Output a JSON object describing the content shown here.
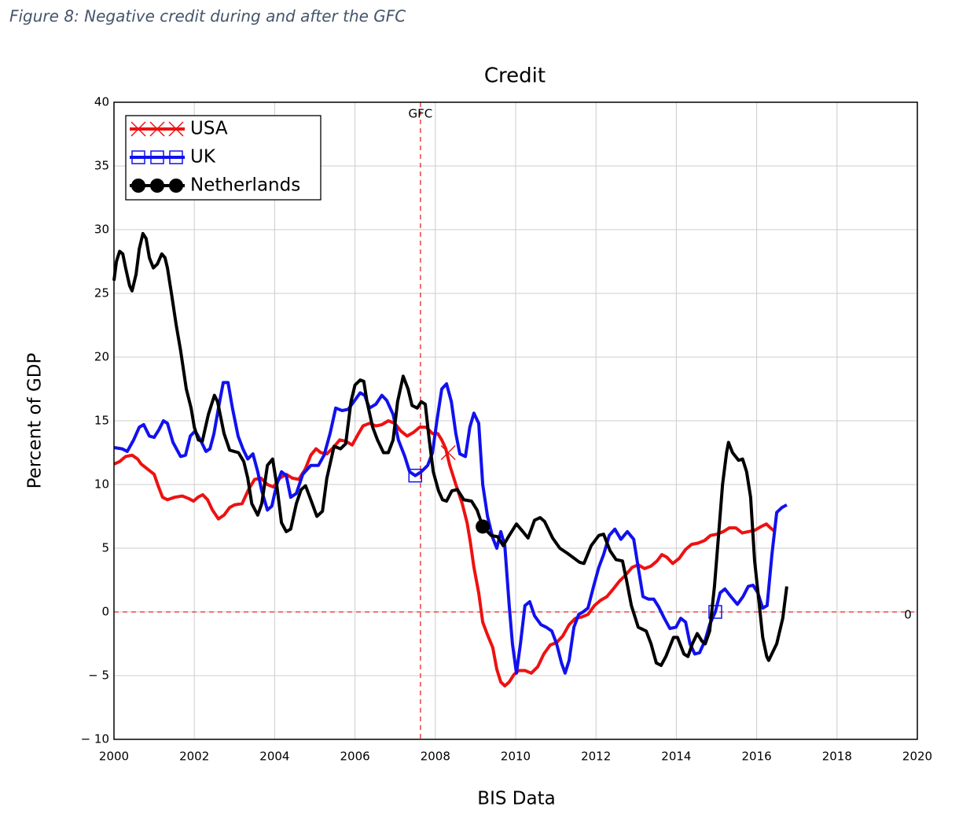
{
  "caption": "Figure 8: Negative credit during and after the GFC",
  "chart_data": {
    "type": "line",
    "title": "Credit",
    "xlabel": "BIS Data",
    "ylabel": "Percent of GDP",
    "xlim": [
      2000,
      2020
    ],
    "xticks": [
      2000,
      2002,
      2004,
      2006,
      2008,
      2010,
      2012,
      2014,
      2016,
      2018,
      2020
    ],
    "ylim": [
      -10,
      40
    ],
    "yticks": [
      {
        "value": -10,
        "label": "− 10"
      },
      {
        "value": -5,
        "label": "− 5"
      },
      0,
      5,
      10,
      15,
      20,
      25,
      30,
      35,
      40
    ],
    "grid": true,
    "legend": "upper left",
    "annotations": [
      {
        "text": "GFC",
        "x": 2007.63,
        "orientation": "vertical",
        "color": "#e8262a"
      },
      {
        "text": "0",
        "y": 0,
        "orientation": "horizontal",
        "color": "#e8262a"
      }
    ],
    "series": [
      {
        "name": "USA",
        "color": "#ee1111",
        "marker": "x",
        "markers": [
          {
            "x": 2008.32,
            "y": 12.5
          }
        ],
        "x": [
          2000,
          2000.14,
          2000.29,
          2000.45,
          2000.59,
          2000.68,
          2000.88,
          2001.0,
          2001.1,
          2001.21,
          2001.33,
          2001.51,
          2001.7,
          2001.86,
          2001.98,
          2002.09,
          2002.21,
          2002.33,
          2002.45,
          2002.6,
          2002.74,
          2002.88,
          2003.0,
          2003.19,
          2003.35,
          2003.5,
          2003.66,
          2003.82,
          2003.97,
          2004.13,
          2004.29,
          2004.44,
          2004.6,
          2004.76,
          2004.9,
          2005.03,
          2005.15,
          2005.3,
          2005.46,
          2005.62,
          2005.77,
          2005.93,
          2006.07,
          2006.2,
          2006.36,
          2006.52,
          2006.67,
          2006.83,
          2006.99,
          2007.14,
          2007.3,
          2007.46,
          2007.61,
          2007.77,
          2007.93,
          2008.06,
          2008.16,
          2008.26,
          2008.36,
          2008.51,
          2008.67,
          2008.79,
          2008.87,
          2008.96,
          2009.08,
          2009.18,
          2009.3,
          2009.43,
          2009.53,
          2009.63,
          2009.73,
          2009.84,
          2009.96,
          2010.08,
          2010.23,
          2010.39,
          2010.55,
          2010.7,
          2010.86,
          2011.02,
          2011.17,
          2011.33,
          2011.49,
          2011.64,
          2011.8,
          2011.96,
          2012.11,
          2012.27,
          2012.43,
          2012.58,
          2012.74,
          2012.9,
          2013.05,
          2013.21,
          2013.37,
          2013.52,
          2013.64,
          2013.76,
          2013.91,
          2014.07,
          2014.23,
          2014.38,
          2014.54,
          2014.7,
          2014.85,
          2015.01,
          2015.17,
          2015.32,
          2015.48,
          2015.64,
          2015.79,
          2015.95,
          2016.11,
          2016.24,
          2016.34,
          2016.46
        ],
        "values": [
          11.6,
          11.8,
          12.2,
          12.3,
          12.0,
          11.6,
          11.1,
          10.8,
          9.9,
          9.0,
          8.8,
          9.0,
          9.1,
          8.9,
          8.7,
          9.0,
          9.2,
          8.8,
          8.0,
          7.3,
          7.6,
          8.2,
          8.4,
          8.5,
          9.6,
          10.4,
          10.5,
          10.0,
          9.8,
          10.5,
          10.8,
          10.5,
          10.4,
          11.2,
          12.3,
          12.8,
          12.5,
          12.4,
          12.9,
          13.5,
          13.4,
          13.1,
          13.9,
          14.6,
          14.8,
          14.6,
          14.7,
          15.0,
          14.8,
          14.2,
          13.8,
          14.1,
          14.5,
          14.5,
          14.0,
          14.0,
          13.5,
          12.8,
          11.5,
          10.0,
          8.5,
          7.0,
          5.5,
          3.5,
          1.5,
          -0.8,
          -1.8,
          -2.8,
          -4.5,
          -5.5,
          -5.8,
          -5.5,
          -4.9,
          -4.6,
          -4.6,
          -4.8,
          -4.3,
          -3.3,
          -2.6,
          -2.4,
          -1.9,
          -1.0,
          -0.5,
          -0.4,
          -0.2,
          0.5,
          0.9,
          1.2,
          1.8,
          2.4,
          2.9,
          3.5,
          3.7,
          3.4,
          3.6,
          4.0,
          4.5,
          4.3,
          3.8,
          4.2,
          4.9,
          5.3,
          5.4,
          5.6,
          6.0,
          6.1,
          6.3,
          6.6,
          6.6,
          6.2,
          6.3,
          6.4,
          6.7,
          6.9,
          6.6,
          6.3
        ]
      },
      {
        "name": "UK",
        "color": "#1111ee",
        "marker": "square",
        "markers": [
          {
            "x": 2007.5,
            "y": 10.7
          },
          {
            "x": 2014.97,
            "y": 0
          }
        ],
        "x": [
          2000,
          2000.2,
          2000.33,
          2000.49,
          2000.63,
          2000.74,
          2000.88,
          2001.0,
          2001.12,
          2001.23,
          2001.33,
          2001.47,
          2001.66,
          2001.78,
          2001.9,
          2002.02,
          2002.15,
          2002.29,
          2002.39,
          2002.49,
          2002.6,
          2002.72,
          2002.84,
          2002.95,
          2003.09,
          2003.21,
          2003.33,
          2003.46,
          2003.58,
          2003.68,
          2003.82,
          2003.93,
          2004.05,
          2004.17,
          2004.29,
          2004.4,
          2004.54,
          2004.7,
          2004.9,
          2005.09,
          2005.23,
          2005.38,
          2005.52,
          2005.68,
          2005.83,
          2005.97,
          2006.13,
          2006.24,
          2006.36,
          2006.52,
          2006.67,
          2006.79,
          2006.95,
          2007.08,
          2007.24,
          2007.36,
          2007.5,
          2007.65,
          2007.81,
          2007.93,
          2008.04,
          2008.16,
          2008.28,
          2008.4,
          2008.51,
          2008.61,
          2008.75,
          2008.86,
          2008.96,
          2009.08,
          2009.18,
          2009.3,
          2009.43,
          2009.53,
          2009.63,
          2009.73,
          2009.84,
          2009.92,
          2010.02,
          2010.12,
          2010.23,
          2010.35,
          2010.47,
          2010.63,
          2010.76,
          2010.9,
          2011.02,
          2011.14,
          2011.23,
          2011.33,
          2011.45,
          2011.57,
          2011.68,
          2011.8,
          2011.94,
          2012.07,
          2012.19,
          2012.33,
          2012.47,
          2012.62,
          2012.78,
          2012.94,
          2013.05,
          2013.17,
          2013.31,
          2013.44,
          2013.56,
          2013.7,
          2013.84,
          2013.99,
          2014.11,
          2014.23,
          2014.34,
          2014.46,
          2014.58,
          2014.72,
          2014.83,
          2014.97,
          2015.09,
          2015.21,
          2015.36,
          2015.52,
          2015.66,
          2015.79,
          2015.91,
          2016.03,
          2016.15,
          2016.26,
          2016.38,
          2016.5,
          2016.63,
          2016.75
        ],
        "values": [
          12.9,
          12.8,
          12.6,
          13.5,
          14.5,
          14.7,
          13.8,
          13.7,
          14.3,
          15.0,
          14.8,
          13.3,
          12.2,
          12.3,
          13.8,
          14.2,
          13.5,
          12.6,
          12.8,
          14.0,
          16.0,
          18.0,
          18.0,
          16.0,
          13.8,
          12.8,
          12.0,
          12.4,
          11.0,
          9.5,
          8.0,
          8.3,
          10.0,
          11.0,
          10.7,
          9.0,
          9.3,
          10.8,
          11.5,
          11.5,
          12.3,
          14.0,
          16.0,
          15.8,
          15.9,
          16.5,
          17.2,
          17.0,
          16.0,
          16.3,
          17.0,
          16.6,
          15.5,
          13.5,
          12.2,
          11.0,
          10.7,
          11.0,
          11.5,
          12.5,
          15.0,
          17.5,
          17.9,
          16.5,
          14.0,
          12.4,
          12.2,
          14.5,
          15.6,
          14.8,
          10.0,
          7.5,
          5.8,
          5.0,
          6.3,
          5.2,
          0.5,
          -2.5,
          -4.8,
          -2.5,
          0.5,
          0.8,
          -0.3,
          -1.0,
          -1.2,
          -1.5,
          -2.5,
          -4.0,
          -4.8,
          -3.8,
          -1.2,
          -0.2,
          0,
          0.3,
          2.0,
          3.5,
          4.5,
          6.0,
          6.5,
          5.7,
          6.3,
          5.7,
          3.5,
          1.2,
          1.0,
          1.0,
          0.4,
          -0.5,
          -1.3,
          -1.2,
          -0.5,
          -0.8,
          -2.5,
          -3.3,
          -3.2,
          -2.2,
          -1.0,
          0.0,
          1.5,
          1.8,
          1.2,
          0.6,
          1.2,
          2.0,
          2.1,
          1.5,
          0.3,
          0.5,
          4.5,
          7.8,
          8.2,
          8.4
        ]
      },
      {
        "name": "Netherlands",
        "color": "#000000",
        "marker": "circle",
        "markers": [
          {
            "x": 2009.18,
            "y": 6.7
          }
        ],
        "x": [
          2000,
          2000.06,
          2000.14,
          2000.22,
          2000.29,
          2000.39,
          2000.45,
          2000.55,
          2000.63,
          2000.72,
          2000.8,
          2000.88,
          2000.98,
          2001.08,
          2001.19,
          2001.27,
          2001.33,
          2001.43,
          2001.55,
          2001.66,
          2001.8,
          2001.92,
          2002.0,
          2002.1,
          2002.2,
          2002.35,
          2002.5,
          2002.58,
          2002.74,
          2002.88,
          2003.1,
          2003.23,
          2003.33,
          2003.43,
          2003.58,
          2003.68,
          2003.82,
          2003.95,
          2004.05,
          2004.17,
          2004.29,
          2004.4,
          2004.54,
          2004.66,
          2004.77,
          2004.9,
          2005.05,
          2005.19,
          2005.3,
          2005.48,
          2005.64,
          2005.77,
          2005.9,
          2006.0,
          2006.13,
          2006.22,
          2006.3,
          2006.44,
          2006.56,
          2006.71,
          2006.83,
          2006.95,
          2007.06,
          2007.2,
          2007.32,
          2007.42,
          2007.55,
          2007.65,
          2007.75,
          2007.85,
          2007.95,
          2008.08,
          2008.18,
          2008.28,
          2008.41,
          2008.55,
          2008.71,
          2008.9,
          2009.04,
          2009.18,
          2009.39,
          2009.55,
          2009.69,
          2009.84,
          2010.02,
          2010.18,
          2010.31,
          2010.47,
          2010.61,
          2010.72,
          2010.92,
          2011.1,
          2011.29,
          2011.59,
          2011.7,
          2011.88,
          2012.07,
          2012.19,
          2012.35,
          2012.5,
          2012.66,
          2012.76,
          2012.88,
          2013.05,
          2013.25,
          2013.37,
          2013.5,
          2013.62,
          2013.74,
          2013.93,
          2014.03,
          2014.19,
          2014.29,
          2014.4,
          2014.52,
          2014.64,
          2014.72,
          2014.83,
          2014.95,
          2015.05,
          2015.15,
          2015.25,
          2015.3,
          2015.4,
          2015.55,
          2015.65,
          2015.75,
          2015.85,
          2015.95,
          2016.05,
          2016.15,
          2016.25,
          2016.3,
          2016.5,
          2016.65,
          2016.75
        ],
        "values": [
          26.0,
          27.5,
          28.3,
          28.1,
          27.0,
          25.6,
          25.2,
          26.5,
          28.5,
          29.7,
          29.3,
          27.8,
          27.0,
          27.3,
          28.1,
          27.8,
          27.0,
          25.0,
          22.5,
          20.5,
          17.5,
          16.0,
          14.5,
          13.5,
          13.4,
          15.5,
          17.0,
          16.5,
          14.0,
          12.7,
          12.5,
          11.8,
          10.5,
          8.5,
          7.6,
          8.5,
          11.5,
          12.0,
          10.0,
          7.0,
          6.3,
          6.5,
          8.5,
          9.6,
          9.9,
          8.8,
          7.5,
          7.9,
          10.5,
          13.0,
          12.8,
          13.2,
          16.5,
          17.8,
          18.2,
          18.1,
          16.5,
          14.5,
          13.5,
          12.5,
          12.5,
          13.5,
          16.5,
          18.5,
          17.5,
          16.2,
          16.0,
          16.5,
          16.3,
          13.5,
          11.0,
          9.5,
          8.8,
          8.7,
          9.5,
          9.6,
          8.8,
          8.7,
          8.0,
          6.7,
          6.0,
          5.9,
          5.2,
          6.0,
          6.9,
          6.3,
          5.8,
          7.2,
          7.4,
          7.1,
          5.8,
          5.0,
          4.6,
          3.9,
          3.8,
          5.2,
          6.0,
          6.1,
          4.8,
          4.1,
          4.0,
          2.5,
          0.5,
          -1.2,
          -1.5,
          -2.5,
          -4.0,
          -4.2,
          -3.5,
          -2.0,
          -2.0,
          -3.3,
          -3.5,
          -2.5,
          -1.7,
          -2.3,
          -2.5,
          -1.5,
          2.0,
          6.0,
          10.0,
          12.5,
          13.3,
          12.5,
          11.9,
          12.0,
          11.0,
          9.0,
          4.0,
          1.0,
          -2.0,
          -3.5,
          -3.8,
          -2.5,
          -0.5,
          2.0
        ]
      }
    ]
  }
}
